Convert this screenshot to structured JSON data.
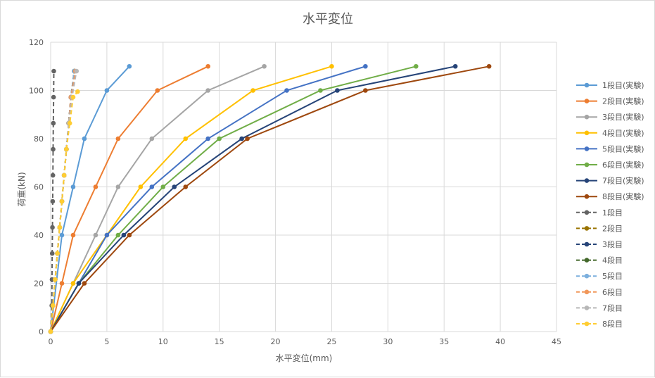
{
  "chart_data": {
    "type": "line",
    "title": "水平変位",
    "xlabel": "水平変位(mm)",
    "ylabel": "荷重(kN)",
    "xlim": [
      0,
      45
    ],
    "ylim": [
      0,
      120
    ],
    "xticks": [
      "0",
      "5",
      "10",
      "15",
      "20",
      "25",
      "30",
      "35",
      "40",
      "45"
    ],
    "yticks": [
      "0",
      "20",
      "40",
      "60",
      "80",
      "100",
      "120"
    ],
    "grid": "vertical and horizontal",
    "legend_position": "right",
    "series": [
      {
        "name": "1段目(実験)",
        "style": "solid",
        "color": "#5B9BD5",
        "points": [
          [
            0,
            0
          ],
          [
            1,
            40
          ],
          [
            2,
            60
          ],
          [
            3,
            80
          ],
          [
            5,
            100
          ],
          [
            7,
            110
          ]
        ]
      },
      {
        "name": "2段目(実験)",
        "style": "solid",
        "color": "#ED7D31",
        "points": [
          [
            0,
            0
          ],
          [
            1,
            20
          ],
          [
            2,
            40
          ],
          [
            4,
            60
          ],
          [
            6,
            80
          ],
          [
            9.5,
            100
          ],
          [
            14,
            110
          ]
        ]
      },
      {
        "name": "3段目(実験)",
        "style": "solid",
        "color": "#A5A5A5",
        "points": [
          [
            0,
            0
          ],
          [
            2,
            20
          ],
          [
            4,
            40
          ],
          [
            6,
            60
          ],
          [
            9,
            80
          ],
          [
            14,
            100
          ],
          [
            19,
            110
          ]
        ]
      },
      {
        "name": "4段目(実験)",
        "style": "solid",
        "color": "#FFC000",
        "points": [
          [
            0,
            0
          ],
          [
            2,
            20
          ],
          [
            5,
            40
          ],
          [
            8,
            60
          ],
          [
            12,
            80
          ],
          [
            18,
            100
          ],
          [
            25,
            110
          ]
        ]
      },
      {
        "name": "5段目(実験)",
        "style": "solid",
        "color": "#4472C4",
        "points": [
          [
            0,
            0
          ],
          [
            2.5,
            20
          ],
          [
            5,
            40
          ],
          [
            9,
            60
          ],
          [
            14,
            80
          ],
          [
            21,
            100
          ],
          [
            28,
            110
          ]
        ]
      },
      {
        "name": "6段目(実験)",
        "style": "solid",
        "color": "#70AD47",
        "points": [
          [
            0,
            0
          ],
          [
            2.5,
            20
          ],
          [
            6,
            40
          ],
          [
            10,
            60
          ],
          [
            15,
            80
          ],
          [
            24,
            100
          ],
          [
            32.5,
            110
          ]
        ]
      },
      {
        "name": "7段目(実験)",
        "style": "solid",
        "color": "#264478",
        "points": [
          [
            0,
            0
          ],
          [
            2.5,
            20
          ],
          [
            6.5,
            40
          ],
          [
            11,
            60
          ],
          [
            17,
            80
          ],
          [
            25.5,
            100
          ],
          [
            36,
            110
          ]
        ]
      },
      {
        "name": "8段目(実験)",
        "style": "solid",
        "color": "#9E480E",
        "points": [
          [
            0,
            0
          ],
          [
            3,
            20
          ],
          [
            7,
            40
          ],
          [
            12,
            60
          ],
          [
            17.5,
            80
          ],
          [
            28,
            100
          ],
          [
            39,
            110
          ]
        ]
      },
      {
        "name": "1段目",
        "style": "dashed",
        "color": "#636363",
        "points": [
          [
            0,
            0
          ],
          [
            0.1,
            10.8
          ],
          [
            0.12,
            21.6
          ],
          [
            0.14,
            32.4
          ],
          [
            0.16,
            43.2
          ],
          [
            0.18,
            54
          ],
          [
            0.2,
            64.8
          ],
          [
            0.22,
            75.6
          ],
          [
            0.24,
            86.4
          ],
          [
            0.26,
            97.2
          ],
          [
            0.28,
            108
          ]
        ]
      },
      {
        "name": "2段目",
        "style": "dashed",
        "color": "#997300",
        "points": [
          [
            0,
            0
          ],
          [
            0.2,
            10.8
          ],
          [
            0.4,
            21.6
          ],
          [
            0.6,
            32.4
          ],
          [
            0.8,
            43.2
          ],
          [
            1,
            54
          ],
          [
            1.2,
            64.8
          ],
          [
            1.4,
            75.6
          ],
          [
            1.6,
            86.4
          ],
          [
            1.8,
            97.2
          ],
          [
            2.1,
            108
          ]
        ]
      },
      {
        "name": "3段目",
        "style": "dashed",
        "color": "#264478",
        "points": [
          [
            0,
            0
          ],
          [
            0.2,
            10.8
          ],
          [
            0.4,
            21.6
          ],
          [
            0.6,
            32.4
          ],
          [
            0.8,
            43.2
          ],
          [
            1,
            54
          ],
          [
            1.2,
            64.8
          ],
          [
            1.4,
            75.6
          ],
          [
            1.6,
            86.4
          ],
          [
            1.8,
            97.2
          ],
          [
            2.1,
            108
          ]
        ]
      },
      {
        "name": "4段目",
        "style": "dashed",
        "color": "#43682B",
        "points": [
          [
            0,
            0
          ],
          [
            0.2,
            10.8
          ],
          [
            0.4,
            21.6
          ],
          [
            0.6,
            32.4
          ],
          [
            0.8,
            43.2
          ],
          [
            1,
            54
          ],
          [
            1.2,
            64.8
          ],
          [
            1.4,
            75.6
          ],
          [
            1.6,
            86.4
          ],
          [
            1.8,
            97.2
          ],
          [
            2.1,
            108
          ]
        ]
      },
      {
        "name": "5段目",
        "style": "dashed",
        "color": "#7CAFDD",
        "points": [
          [
            0,
            0
          ],
          [
            0.2,
            10.8
          ],
          [
            0.4,
            21.6
          ],
          [
            0.6,
            32.4
          ],
          [
            0.8,
            43.2
          ],
          [
            1,
            54
          ],
          [
            1.2,
            64.8
          ],
          [
            1.4,
            75.6
          ],
          [
            1.6,
            86.4
          ],
          [
            1.8,
            97.2
          ],
          [
            2.1,
            108
          ]
        ]
      },
      {
        "name": "6段目",
        "style": "dashed",
        "color": "#F1975A",
        "points": [
          [
            0,
            0
          ],
          [
            0.2,
            10.8
          ],
          [
            0.4,
            21.6
          ],
          [
            0.6,
            32.4
          ],
          [
            0.8,
            43.2
          ],
          [
            1,
            54
          ],
          [
            1.2,
            64.8
          ],
          [
            1.4,
            75.6
          ],
          [
            1.6,
            86.4
          ],
          [
            1.8,
            97.2
          ],
          [
            2.2,
            108
          ]
        ]
      },
      {
        "name": "7段目",
        "style": "dashed",
        "color": "#B7B7B7",
        "points": [
          [
            0,
            0
          ],
          [
            0.2,
            10.8
          ],
          [
            0.4,
            21.6
          ],
          [
            0.6,
            32.4
          ],
          [
            0.8,
            43.2
          ],
          [
            1,
            54
          ],
          [
            1.2,
            64.8
          ],
          [
            1.4,
            75.6
          ],
          [
            1.6,
            86.4
          ],
          [
            1.9,
            97.2
          ],
          [
            2.3,
            108
          ]
        ]
      },
      {
        "name": "8段目",
        "style": "dashed",
        "color": "#FFCD33",
        "points": [
          [
            0,
            0
          ],
          [
            0.2,
            10.8
          ],
          [
            0.4,
            21.6
          ],
          [
            0.6,
            32.4
          ],
          [
            0.8,
            43.2
          ],
          [
            1,
            54
          ],
          [
            1.2,
            64.8
          ],
          [
            1.4,
            75.6
          ],
          [
            1.7,
            86.4
          ],
          [
            2,
            97.2
          ],
          [
            2.4,
            99.5
          ]
        ]
      }
    ]
  }
}
